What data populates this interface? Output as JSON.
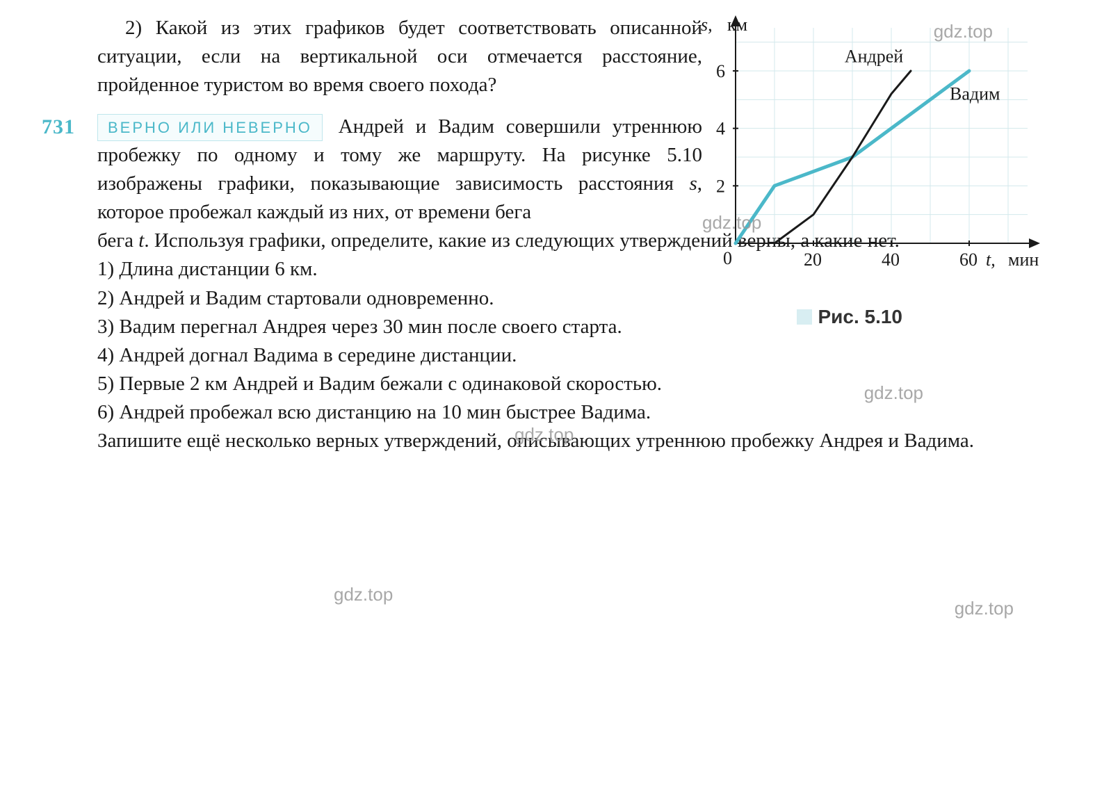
{
  "intro": {
    "q2": "2) Какой из этих графиков будет соответствовать описанной ситуации, если на вертикальной оси отмечается расстояние, пройденное туристом во время своего похода?"
  },
  "problem": {
    "number": "731",
    "tag": "ВЕРНО ИЛИ НЕВЕРНО",
    "lead_in": "Андрей и Вадим совершили утреннюю пробежку по одному и тому же маршруту. На рисунке 5.10 изображены графики, показывающие зависимость расстояния ",
    "s_var": "s",
    "mid": ", которое пробежал каждый из них, от времени бега ",
    "t_var": "t",
    "tail": ". Используя графики, определите, какие из следующих утверждений верны, а какие нет.",
    "items": {
      "i1": "1) Длина дистанции 6 км.",
      "i2": "2) Андрей и Вадим стартовали одновременно.",
      "i3": "3) Вадим перегнал Андрея через 30 мин после своего старта.",
      "i4": "4) Андрей догнал Вадима в середине дистанции.",
      "i5": "5) Первые 2 км Андрей и Вадим бежали с одинаковой скоростью.",
      "i6": "6) Андрей пробежал всю дистанцию на 10 мин быстрее Вадима."
    },
    "closing": "Запишите ещё несколько верных утверждений, описывающих утреннюю пробежку Андрея и Вадима."
  },
  "figure_caption": "Рис. 5.10",
  "chart": {
    "type": "line",
    "background_color": "#ffffff",
    "grid_color": "#d3e8ec",
    "axis_color": "#1a1a1a",
    "tick_fontsize": 26,
    "label_fontsize": 26,
    "x_axis": {
      "label_text": "t",
      "label_unit": "мин",
      "ticks": [
        0,
        20,
        40,
        60
      ],
      "range": [
        0,
        75
      ]
    },
    "y_axis": {
      "label_text": "s",
      "label_unit": "км",
      "ticks": [
        2,
        4,
        6
      ],
      "range": [
        0,
        7.5
      ]
    },
    "series": [
      {
        "name": "Андрей",
        "label": "Андрей",
        "label_pos": {
          "x": 28,
          "y": 6.3
        },
        "color": "#1a1a1a",
        "line_width": 3,
        "points": [
          {
            "t": 10,
            "s": 0
          },
          {
            "t": 20,
            "s": 1
          },
          {
            "t": 30,
            "s": 3
          },
          {
            "t": 40,
            "s": 5.2
          },
          {
            "t": 45,
            "s": 6
          }
        ]
      },
      {
        "name": "Вадим",
        "label": "Вадим",
        "label_pos": {
          "x": 55,
          "y": 5
        },
        "color": "#4bb8c9",
        "line_width": 5,
        "points": [
          {
            "t": 0,
            "s": 0
          },
          {
            "t": 10,
            "s": 2
          },
          {
            "t": 30,
            "s": 3
          },
          {
            "t": 60,
            "s": 6
          }
        ]
      }
    ]
  },
  "watermarks": {
    "w1": "gdz.top",
    "w2": "gdz.top",
    "w3": "gdz.top",
    "w4": "gdz.top",
    "w5": "gdz.top",
    "w6": "gdz.top"
  }
}
